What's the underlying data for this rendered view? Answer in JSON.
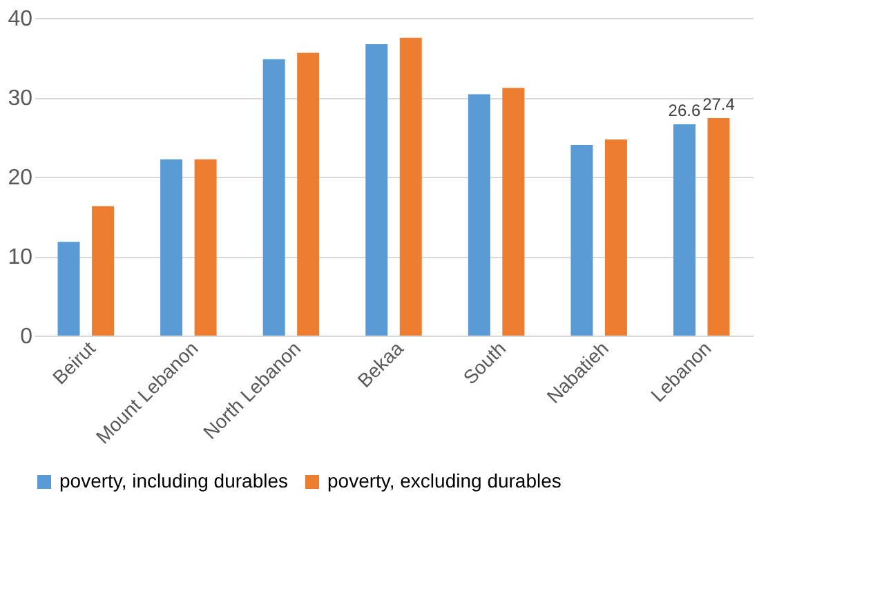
{
  "chart_data": {
    "type": "bar",
    "categories": [
      "Beirut",
      "Mount Lebanon",
      "North Lebanon",
      "Bekaa",
      "South",
      "Nabatieh",
      "Lebanon"
    ],
    "series": [
      {
        "name": "poverty, including durables",
        "color": "#5b9bd5",
        "values": [
          11.8,
          22.2,
          34.8,
          36.7,
          30.4,
          24.0,
          26.6
        ],
        "value_labels": [
          null,
          null,
          null,
          null,
          null,
          null,
          "26.6"
        ]
      },
      {
        "name": "poverty,  excluding durables",
        "color": "#ed7d31",
        "values": [
          16.3,
          22.2,
          35.6,
          37.5,
          31.2,
          24.7,
          27.4
        ],
        "value_labels": [
          null,
          null,
          null,
          null,
          null,
          null,
          "27.4"
        ]
      }
    ],
    "ylim": [
      0,
      40
    ],
    "yticks": [
      0,
      10,
      20,
      30,
      40
    ],
    "grid": "y",
    "legend": "bottom"
  }
}
